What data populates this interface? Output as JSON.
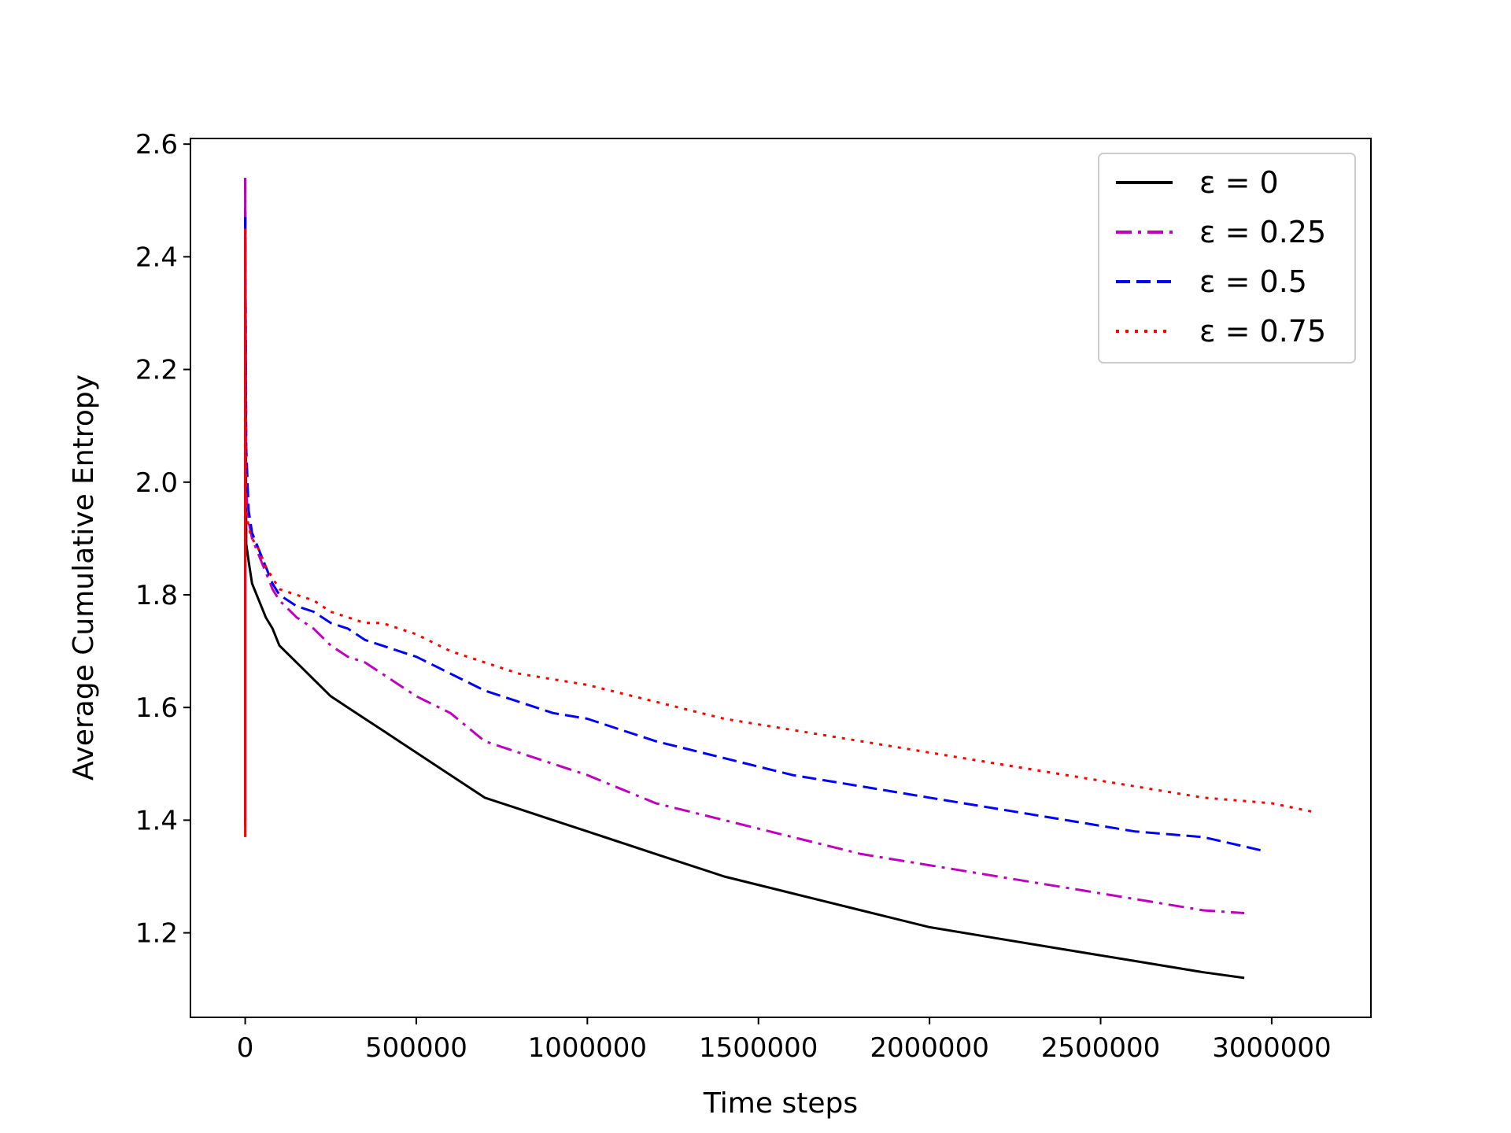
{
  "chart_data": {
    "type": "line",
    "title": "",
    "xlabel": "Time steps",
    "ylabel": "Average Cumulative Entropy",
    "xlim": [
      -160000,
      3290000
    ],
    "ylim": [
      1.05,
      2.61
    ],
    "xticks": [
      0,
      500000,
      1000000,
      1500000,
      2000000,
      2500000,
      3000000
    ],
    "xtick_labels": [
      "0",
      "500000",
      "1000000",
      "1500000",
      "2000000",
      "2500000",
      "3000000"
    ],
    "yticks": [
      1.2,
      1.4,
      1.6,
      1.8,
      2.0,
      2.2,
      2.4,
      2.6
    ],
    "ytick_labels": [
      "1.2",
      "1.4",
      "1.6",
      "1.8",
      "2.0",
      "2.2",
      "2.4",
      "2.6"
    ],
    "grid": false,
    "legend_position": "top-right",
    "series": [
      {
        "name": "ε = 0",
        "color": "#000000",
        "dash": "solid",
        "spike": [
          0,
          1.39,
          2.48
        ],
        "x": [
          3000,
          10000,
          20000,
          40000,
          60000,
          80000,
          100000,
          150000,
          200000,
          250000,
          300000,
          350000,
          400000,
          450000,
          500000,
          600000,
          700000,
          800000,
          900000,
          1000000,
          1200000,
          1400000,
          1600000,
          1800000,
          2000000,
          2200000,
          2400000,
          2600000,
          2800000,
          2920000
        ],
        "y": [
          1.89,
          1.86,
          1.82,
          1.79,
          1.76,
          1.74,
          1.71,
          1.68,
          1.65,
          1.62,
          1.6,
          1.58,
          1.56,
          1.54,
          1.52,
          1.48,
          1.44,
          1.42,
          1.4,
          1.38,
          1.34,
          1.3,
          1.27,
          1.24,
          1.21,
          1.19,
          1.17,
          1.15,
          1.13,
          1.12
        ]
      },
      {
        "name": "ε = 0.25",
        "color": "#bf00bf",
        "dash": "dashdot",
        "spike": [
          0,
          1.4,
          2.54
        ],
        "x": [
          3000,
          10000,
          20000,
          40000,
          60000,
          80000,
          100000,
          150000,
          200000,
          250000,
          300000,
          350000,
          400000,
          450000,
          500000,
          600000,
          700000,
          800000,
          900000,
          1000000,
          1200000,
          1400000,
          1600000,
          1800000,
          2000000,
          2200000,
          2400000,
          2600000,
          2800000,
          2920000
        ],
        "y": [
          1.98,
          1.93,
          1.9,
          1.87,
          1.84,
          1.81,
          1.79,
          1.76,
          1.74,
          1.71,
          1.69,
          1.68,
          1.66,
          1.64,
          1.62,
          1.59,
          1.54,
          1.52,
          1.5,
          1.48,
          1.43,
          1.4,
          1.37,
          1.34,
          1.32,
          1.3,
          1.28,
          1.26,
          1.24,
          1.235
        ]
      },
      {
        "name": "ε = 0.5",
        "color": "#0000ff",
        "dash": "dashed",
        "spike": [
          0,
          1.4,
          2.47
        ],
        "x": [
          3000,
          10000,
          20000,
          40000,
          60000,
          80000,
          100000,
          150000,
          200000,
          250000,
          300000,
          350000,
          400000,
          450000,
          500000,
          600000,
          700000,
          800000,
          900000,
          1000000,
          1200000,
          1400000,
          1600000,
          1800000,
          2000000,
          2200000,
          2400000,
          2600000,
          2800000,
          2980000
        ],
        "y": [
          2.06,
          1.95,
          1.91,
          1.88,
          1.85,
          1.82,
          1.8,
          1.78,
          1.77,
          1.75,
          1.74,
          1.72,
          1.71,
          1.7,
          1.69,
          1.66,
          1.63,
          1.61,
          1.59,
          1.58,
          1.54,
          1.51,
          1.48,
          1.46,
          1.44,
          1.42,
          1.4,
          1.38,
          1.37,
          1.345
        ]
      },
      {
        "name": "ε = 0.75",
        "color": "#ff0000",
        "dash": "dotted",
        "spike": [
          0,
          1.37,
          2.45
        ],
        "x": [
          3000,
          10000,
          20000,
          40000,
          60000,
          80000,
          100000,
          150000,
          200000,
          250000,
          300000,
          350000,
          400000,
          450000,
          500000,
          600000,
          700000,
          800000,
          900000,
          1000000,
          1200000,
          1400000,
          1600000,
          1800000,
          2000000,
          2200000,
          2400000,
          2600000,
          2800000,
          3000000,
          3120000
        ],
        "y": [
          1.95,
          1.92,
          1.9,
          1.88,
          1.85,
          1.83,
          1.81,
          1.8,
          1.79,
          1.77,
          1.76,
          1.75,
          1.75,
          1.74,
          1.73,
          1.7,
          1.68,
          1.66,
          1.65,
          1.64,
          1.61,
          1.58,
          1.56,
          1.54,
          1.52,
          1.5,
          1.48,
          1.46,
          1.44,
          1.43,
          1.415
        ]
      }
    ]
  }
}
